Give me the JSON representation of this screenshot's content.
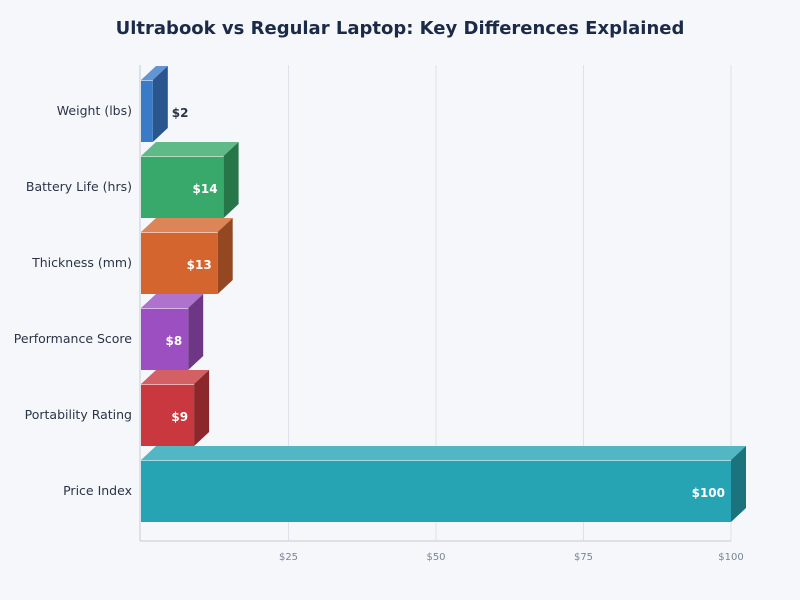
{
  "chart_data": {
    "type": "bar",
    "orientation": "horizontal",
    "style": "3d",
    "title": "Ultrabook vs Regular Laptop: Key Differences Explained",
    "categories": [
      "Weight (lbs)",
      "Battery Life (hrs)",
      "Thickness (mm)",
      "Performance Score",
      "Portability Rating",
      "Price Index"
    ],
    "values": [
      2,
      14,
      13,
      8,
      9,
      100
    ],
    "data_labels": [
      "$2",
      "$14",
      "$13",
      "$8",
      "$9",
      "$100"
    ],
    "colors": [
      "#3a7bc8",
      "#38a96a",
      "#d4652e",
      "#9b4fc0",
      "#c8383e",
      "#27a4b4"
    ],
    "xlim": [
      0,
      100
    ],
    "xticks": [
      25,
      50,
      75,
      100
    ],
    "xtick_labels": [
      "$25",
      "$50",
      "$75",
      "$100"
    ],
    "grid": "vertical",
    "legend": "none"
  }
}
